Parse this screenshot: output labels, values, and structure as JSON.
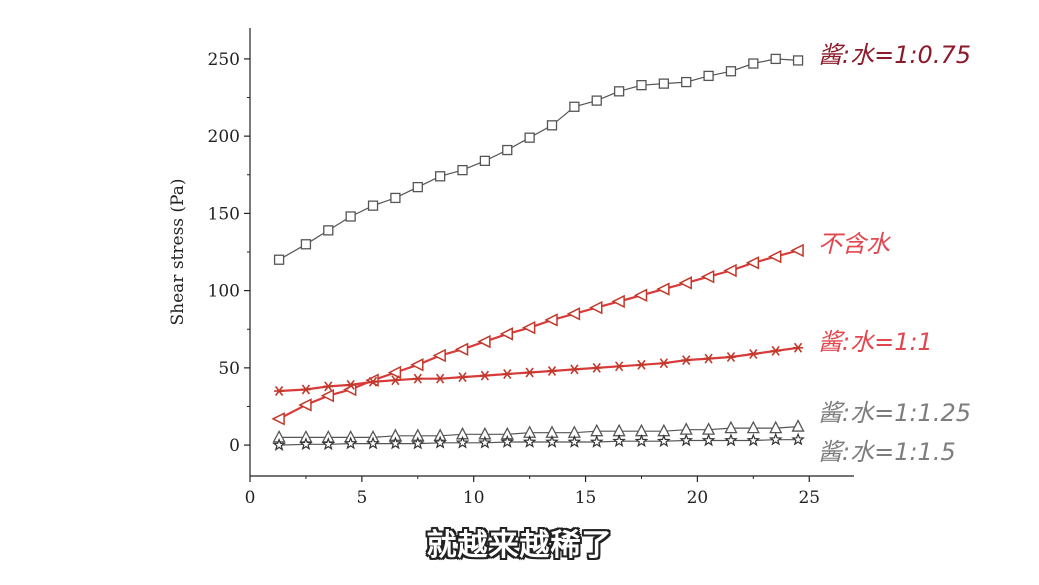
{
  "chart_data": {
    "type": "line",
    "xlabel": "",
    "ylabel": "Shear stress (Pa)",
    "xlim": [
      0,
      27
    ],
    "ylim": [
      -20,
      270
    ],
    "xticks": [
      0,
      5,
      10,
      15,
      20,
      25
    ],
    "yticks": [
      0,
      50,
      100,
      150,
      200,
      250
    ],
    "grid": false,
    "series": [
      {
        "name": "酱:水=1:0.75",
        "marker": "square",
        "line_color": "#555555",
        "marker_color": "#555555",
        "label_color": "#8b1a2b",
        "x": [
          1.3,
          2.5,
          3.5,
          4.5,
          5.5,
          6.5,
          7.5,
          8.5,
          9.5,
          10.5,
          11.5,
          12.5,
          13.5,
          14.5,
          15.5,
          16.5,
          17.5,
          18.5,
          19.5,
          20.5,
          21.5,
          22.5,
          23.5,
          24.5
        ],
        "values": [
          120,
          130,
          139,
          148,
          155,
          160,
          167,
          174,
          178,
          184,
          191,
          199,
          207,
          219,
          223,
          229,
          233,
          234,
          235,
          239,
          242,
          247,
          250,
          249
        ]
      },
      {
        "name": "不含水",
        "marker": "triangle-left",
        "line_color": "#d93a3a",
        "marker_color": "#c0392b",
        "label_color": "#e2474f",
        "x": [
          1.3,
          2.5,
          3.5,
          4.5,
          5.5,
          6.5,
          7.5,
          8.5,
          9.5,
          10.5,
          11.5,
          12.5,
          13.5,
          14.5,
          15.5,
          16.5,
          17.5,
          18.5,
          19.5,
          20.5,
          21.5,
          22.5,
          23.5,
          24.5
        ],
        "values": [
          17,
          26,
          32,
          36,
          42,
          47,
          52,
          58,
          62,
          67,
          72,
          76,
          81,
          85,
          89,
          93,
          97,
          101,
          105,
          109,
          113,
          118,
          122,
          126
        ]
      },
      {
        "name": "酱:水=1:1",
        "marker": "asterisk",
        "line_color": "#d93a3a",
        "marker_color": "#c0392b",
        "label_color": "#e2474f",
        "x": [
          1.3,
          2.5,
          3.5,
          4.5,
          5.5,
          6.5,
          7.5,
          8.5,
          9.5,
          10.5,
          11.5,
          12.5,
          13.5,
          14.5,
          15.5,
          16.5,
          17.5,
          18.5,
          19.5,
          20.5,
          21.5,
          22.5,
          23.5,
          24.5
        ],
        "values": [
          35,
          36,
          38,
          39,
          41,
          42,
          43,
          43,
          44,
          45,
          46,
          47,
          48,
          49,
          50,
          51,
          52,
          53,
          55,
          56,
          57,
          59,
          61,
          63
        ]
      },
      {
        "name": "酱:水=1:1.25",
        "marker": "triangle-up",
        "line_color": "#555555",
        "marker_color": "#555555",
        "label_color": "#7d7d7d",
        "x": [
          1.3,
          2.5,
          3.5,
          4.5,
          5.5,
          6.5,
          7.5,
          8.5,
          9.5,
          10.5,
          11.5,
          12.5,
          13.5,
          14.5,
          15.5,
          16.5,
          17.5,
          18.5,
          19.5,
          20.5,
          21.5,
          22.5,
          23.5,
          24.5
        ],
        "values": [
          5,
          5,
          5,
          5,
          5,
          6,
          6,
          6,
          7,
          7,
          7,
          8,
          8,
          8,
          9,
          9,
          9,
          9,
          10,
          10,
          11,
          11,
          11,
          12
        ]
      },
      {
        "name": "酱:水=1:1.5",
        "marker": "star",
        "line_color": "#555555",
        "marker_color": "#333333",
        "label_color": "#7d7d7d",
        "x": [
          1.3,
          2.5,
          3.5,
          4.5,
          5.5,
          6.5,
          7.5,
          8.5,
          9.5,
          10.5,
          11.5,
          12.5,
          13.5,
          14.5,
          15.5,
          16.5,
          17.5,
          18.5,
          19.5,
          20.5,
          21.5,
          22.5,
          23.5,
          24.5
        ],
        "values": [
          0,
          0.5,
          0.5,
          1,
          1,
          1,
          1,
          1.5,
          1.5,
          1.5,
          2,
          2,
          2,
          2,
          2,
          2.5,
          2.5,
          2.5,
          3,
          3,
          3,
          3,
          3.5,
          3.5
        ]
      }
    ]
  },
  "subtitle": "就越来越稀了"
}
